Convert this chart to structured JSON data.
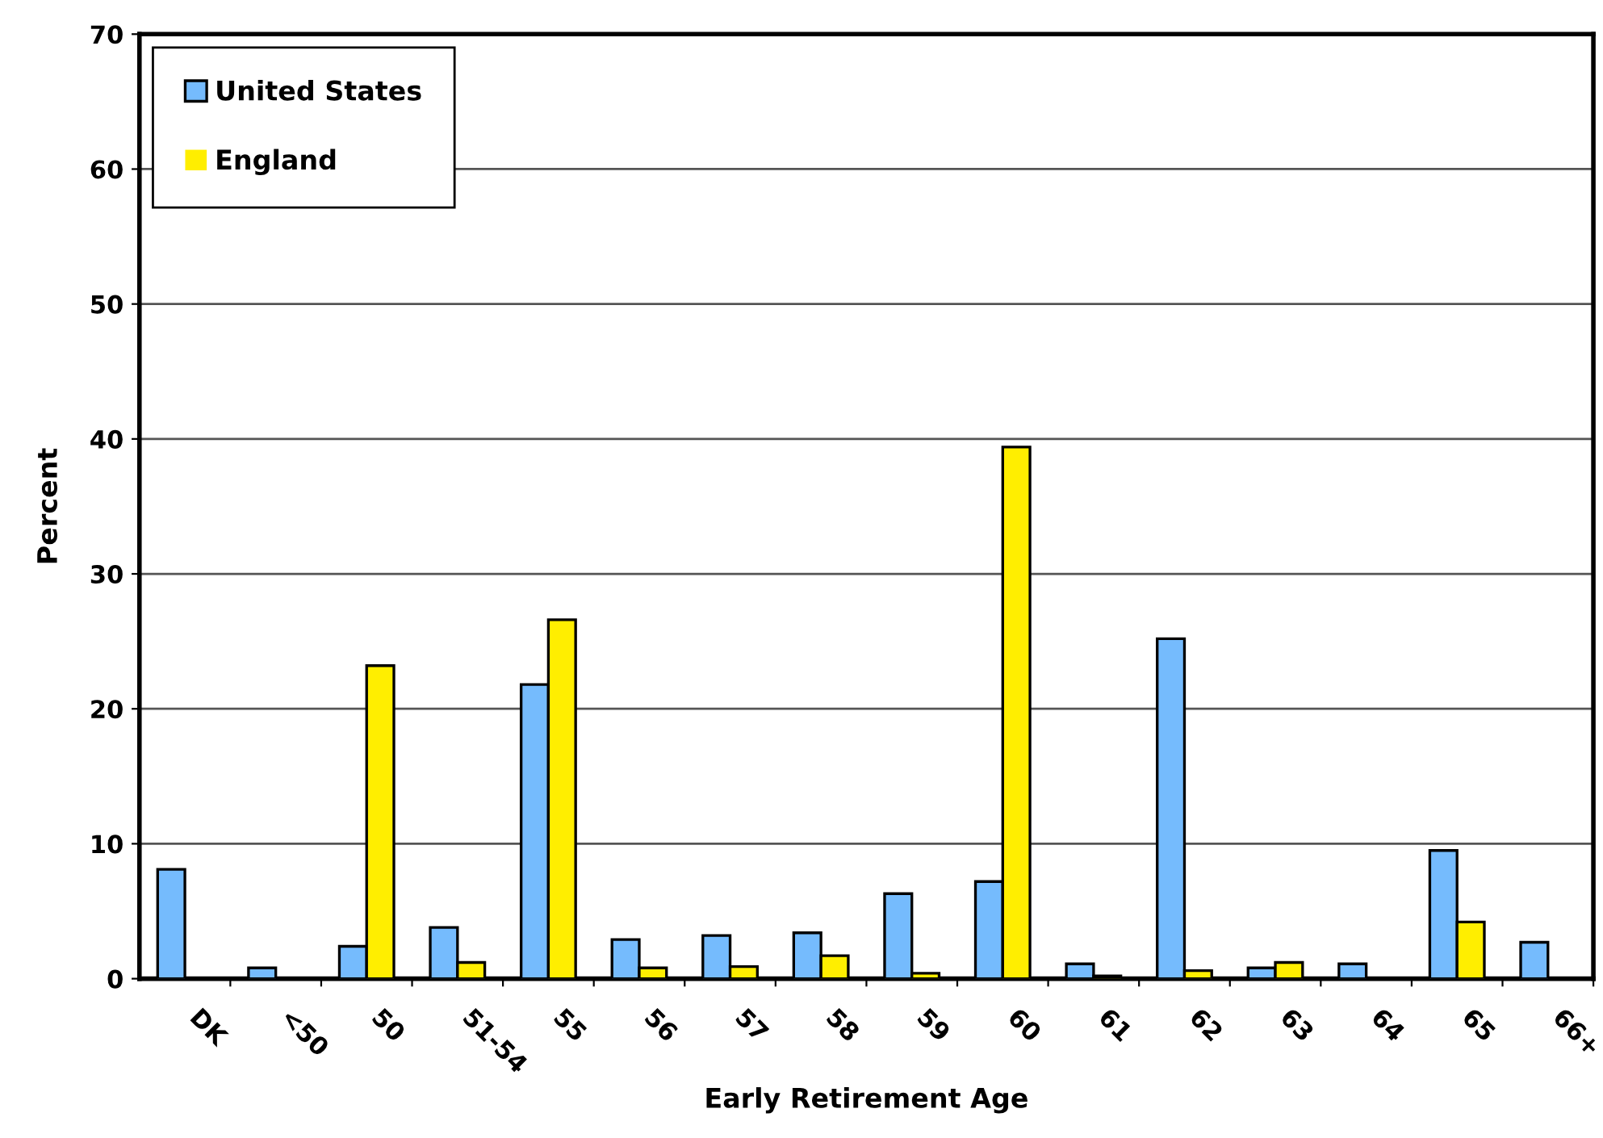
{
  "chart_data": {
    "type": "bar",
    "xlabel": "Early Retirement Age",
    "ylabel": "Percent",
    "categories": [
      "DK",
      "<50",
      "50",
      "51-54",
      "55",
      "56",
      "57",
      "58",
      "59",
      "60",
      "61",
      "62",
      "63",
      "64",
      "65",
      "66+"
    ],
    "series": [
      {
        "name": "United States",
        "color": "#75bbfd",
        "values": [
          8.1,
          0.8,
          2.4,
          3.8,
          21.8,
          2.9,
          3.2,
          3.4,
          6.3,
          7.2,
          1.1,
          25.2,
          0.8,
          1.1,
          9.5,
          2.7
        ]
      },
      {
        "name": "England",
        "color": "#ffee00",
        "values": [
          0,
          0,
          23.2,
          1.2,
          26.6,
          0.8,
          0.9,
          1.7,
          0.4,
          39.4,
          0.2,
          0.6,
          1.2,
          0,
          4.2,
          0
        ]
      }
    ],
    "ylim": [
      0,
      70
    ],
    "yticks": [
      0,
      10,
      20,
      30,
      40,
      50,
      60,
      70
    ],
    "grid": "y",
    "legend": "top left"
  }
}
